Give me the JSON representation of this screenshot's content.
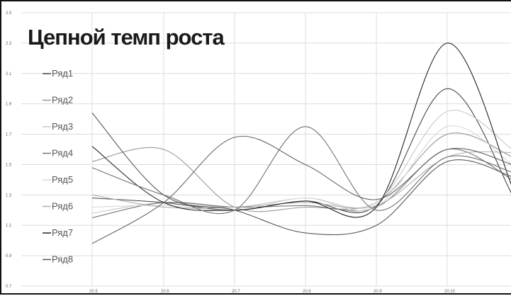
{
  "chart_data": {
    "type": "line",
    "title": "Цепной темп роста",
    "xlabel": "",
    "ylabel": "",
    "x": [
      "20.5",
      "20.6",
      "20.7",
      "20.8",
      "20.9",
      "20.10",
      ""
    ],
    "ylim": [
      0.7,
      2.5
    ],
    "y_ticks": [
      "0.7",
      "0.9",
      "1.1",
      "1.3",
      "1.5",
      "1.7",
      "1.9",
      "2.1",
      "2.3",
      "2.5"
    ],
    "grid": true,
    "legend_position": "left",
    "series": [
      {
        "name": "Ряд1",
        "color": "#444444",
        "values": [
          1.28,
          1.25,
          1.2,
          1.26,
          1.23,
          2.0,
          1.3
        ]
      },
      {
        "name": "Ряд2",
        "color": "#9a9a9a",
        "values": [
          1.52,
          1.6,
          1.22,
          1.22,
          1.25,
          1.7,
          1.55
        ]
      },
      {
        "name": "Ряд3",
        "color": "#c8c8c8",
        "values": [
          1.18,
          1.25,
          1.22,
          1.28,
          1.25,
          1.85,
          1.6
        ]
      },
      {
        "name": "Ряд4",
        "color": "#777777",
        "values": [
          1.15,
          1.25,
          1.22,
          1.23,
          1.22,
          1.6,
          1.4
        ]
      },
      {
        "name": "Ряд5",
        "color": "#d8d8d8",
        "values": [
          1.22,
          1.23,
          1.2,
          1.28,
          1.22,
          1.75,
          1.5
        ]
      },
      {
        "name": "Ряд6",
        "color": "#b0b0b0",
        "values": [
          1.3,
          1.22,
          1.22,
          1.25,
          1.23,
          1.55,
          1.58
        ]
      },
      {
        "name": "Ряд7",
        "color": "#222222",
        "values": [
          1.62,
          1.25,
          1.2,
          1.26,
          1.22,
          2.3,
          1.35
        ]
      },
      {
        "name": "Ряд8",
        "color": "#555555",
        "values": [
          1.84,
          1.3,
          1.2,
          1.05,
          1.1,
          1.52,
          1.42
        ]
      },
      {
        "name": "",
        "color": "#666666",
        "values": [
          0.98,
          1.25,
          1.68,
          1.5,
          1.27,
          1.6,
          1.5
        ]
      },
      {
        "name": "",
        "color": "#707070",
        "values": [
          1.48,
          1.3,
          1.2,
          1.75,
          1.2,
          1.55,
          1.45
        ]
      }
    ]
  }
}
